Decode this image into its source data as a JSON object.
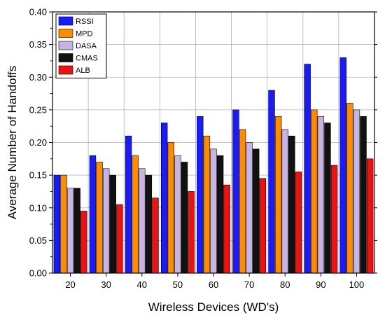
{
  "chart_data": {
    "type": "bar",
    "title": "",
    "xlabel": "Wireless Devices (WD's)",
    "ylabel": "Average Number of Handoffs",
    "ylim": [
      0,
      0.4
    ],
    "yticks": [
      "0.00",
      "0.05",
      "0.10",
      "0.15",
      "0.20",
      "0.25",
      "0.30",
      "0.35",
      "0.40"
    ],
    "categories": [
      "20",
      "30",
      "40",
      "50",
      "60",
      "70",
      "80",
      "90",
      "100"
    ],
    "grid": true,
    "legend_position": "top-left",
    "series": [
      {
        "name": "RSSI",
        "color": "#1a1aff",
        "values": [
          0.15,
          0.18,
          0.21,
          0.23,
          0.24,
          0.25,
          0.28,
          0.32,
          0.33
        ]
      },
      {
        "name": "MPD",
        "color": "#ff8c00",
        "values": [
          0.15,
          0.17,
          0.18,
          0.2,
          0.21,
          0.22,
          0.24,
          0.25,
          0.26
        ]
      },
      {
        "name": "DASA",
        "color": "#c8b4e0",
        "values": [
          0.13,
          0.16,
          0.16,
          0.18,
          0.19,
          0.2,
          0.22,
          0.24,
          0.25
        ]
      },
      {
        "name": "CMAS",
        "color": "#111111",
        "values": [
          0.13,
          0.15,
          0.15,
          0.17,
          0.18,
          0.19,
          0.21,
          0.23,
          0.24
        ]
      },
      {
        "name": "ALB",
        "color": "#ee1111",
        "values": [
          0.095,
          0.105,
          0.115,
          0.125,
          0.135,
          0.145,
          0.155,
          0.165,
          0.175
        ]
      }
    ]
  }
}
